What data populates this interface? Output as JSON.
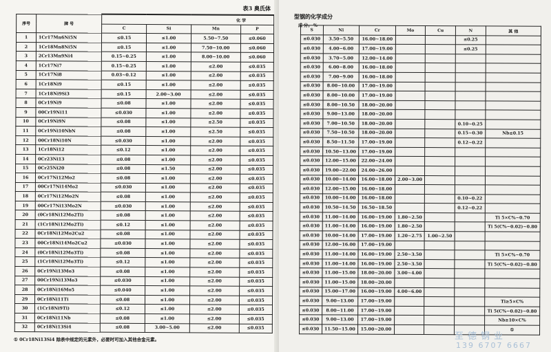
{
  "left": {
    "table_title": "表3  奥氏体",
    "header": {
      "no": "序号",
      "grade": "牌      号",
      "group": "化      学",
      "cols": [
        "C",
        "Si",
        "Mn",
        "P"
      ]
    },
    "rows": [
      [
        "1",
        "1Cr17Mn6Ni5N",
        "≤0.15",
        "≤1.00",
        "5.50~7.50",
        "≤0.060"
      ],
      [
        "2",
        "1Cr18Mn8Ni5N",
        "≤0.15",
        "≤1.00",
        "7.50~10.00",
        "≤0.060"
      ],
      [
        "3",
        "2Cr13Mn9Ni4",
        "0.15~0.25",
        "≤1.00",
        "8.00~10.00",
        "≤0.060"
      ],
      [
        "4",
        "1Cr17Ni7",
        "0.15~0.25",
        "≤1.00",
        "≤2.00",
        "≤0.035"
      ],
      [
        "5",
        "1Cr17Ni8",
        "0.03~0.12",
        "≤1.00",
        "≤2.00",
        "≤0.035"
      ],
      [
        "6",
        "1Cr18Ni9",
        "≤0.15",
        "≤1.00",
        "≤2.00",
        "≤0.035"
      ],
      [
        "7",
        "1Cr18Ni9Si3",
        "≤0.15",
        "2.00~3.00",
        "≤2.00",
        "≤0.035"
      ],
      [
        "8",
        "0Cr19Ni9",
        "≤0.08",
        "≤1.00",
        "≤2.00",
        "≤0.035"
      ],
      [
        "9",
        "00Cr19Ni11",
        "≤0.030",
        "≤1.00",
        "≤2.00",
        "≤0.035"
      ],
      [
        "10",
        "0Cr19Ni9N",
        "≤0.08",
        "≤1.00",
        "≤2.50",
        "≤0.035"
      ],
      [
        "11",
        "0Cr19Ni10NbN",
        "≤0.08",
        "≤1.00",
        "≤2.50",
        "≤0.035"
      ],
      [
        "12",
        "00Cr18Ni10N",
        "≤0.030",
        "≤1.00",
        "≤2.00",
        "≤0.035"
      ],
      [
        "13",
        "1Cr18Ni12",
        "≤0.12",
        "≤1.00",
        "≤2.00",
        "≤0.035"
      ],
      [
        "14",
        "0Cr23Ni13",
        "≤0.08",
        "≤1.00",
        "≤2.00",
        "≤0.035"
      ],
      [
        "15",
        "0Cr25Ni20",
        "≤0.08",
        "≤1.50",
        "≤2.00",
        "≤0.035"
      ],
      [
        "16",
        "0Cr17Ni12Mo2",
        "≤0.08",
        "≤1.00",
        "≤2.00",
        "≤0.035"
      ],
      [
        "17",
        "00Cr17Ni14Mo2",
        "≤0.030",
        "≤1.00",
        "≤2.00",
        "≤0.035"
      ],
      [
        "18",
        "0Cr17Ni12Mo2N",
        "≤0.08",
        "≤1.00",
        "≤2.00",
        "≤0.035"
      ],
      [
        "19",
        "00Cr17Ni13Mo2N",
        "≤0.030",
        "≤1.00",
        "≤2.00",
        "≤0.035"
      ],
      [
        "20",
        "(0Cr18Ni12Mo2Ti)",
        "≤0.08",
        "≤1.00",
        "≤2.00",
        "≤0.035"
      ],
      [
        "21",
        "(1Cr18Ni12Mo2Ti)",
        "≤0.12",
        "≤1.00",
        "≤2.00",
        "≤0.035"
      ],
      [
        "22",
        "0Cr18Ni12Mo2Cu2",
        "≤0.08",
        "≤1.00",
        "≤2.00",
        "≤0.035"
      ],
      [
        "23",
        "00Cr18Ni14Mo2Cu2",
        "≤0.030",
        "≤1.00",
        "≤2.00",
        "≤0.035"
      ],
      [
        "24",
        "(0Cr18Ni12Mo3Ti)",
        "≤0.08",
        "≤1.00",
        "≤2.00",
        "≤0.035"
      ],
      [
        "25",
        "(1Cr18Ni12Mo3Ti)",
        "≤0.12",
        "≤1.00",
        "≤2.00",
        "≤0.035"
      ],
      [
        "26",
        "0Cr19Ni13Mo3",
        "≤0.08",
        "≤1.00",
        "≤2.00",
        "≤0.035"
      ],
      [
        "27",
        "00Cr19Ni13Mo3",
        "≤0.030",
        "≤1.00",
        "≤2.00",
        "≤0.035"
      ],
      [
        "28",
        "0Cr18Ni16Mo5",
        "≤0.040",
        "≤1.00",
        "≤2.00",
        "≤0.035"
      ],
      [
        "29",
        "0Cr18Ni11Ti",
        "≤0.08",
        "≤1.00",
        "≤2.00",
        "≤0.035"
      ],
      [
        "30",
        "(1Cr18Ni9Ti)",
        "≤0.12",
        "≤1.00",
        "≤2.00",
        "≤0.035"
      ],
      [
        "31",
        "0Cr18Ni11Nb",
        "≤0.08",
        "≤1.00",
        "≤2.00",
        "≤0.035"
      ],
      [
        "32",
        "0Cr18Ni13Si4",
        "≤0.08",
        "3.00~5.00",
        "≤2.00",
        "≤0.035"
      ]
    ],
    "footnote": "① 0Cr18Ni13Si4 除表中规定的元素外，必要时可加入其他合金元素。"
  },
  "right": {
    "table_title": "型钢的化学成分",
    "subheader": "成    分，   %",
    "cols": [
      "S",
      "Ni",
      "Cr",
      "Mo",
      "Cu",
      "N",
      "其      他"
    ],
    "rows": [
      [
        "≤0.030",
        "3.50~5.50",
        "16.00~18.00",
        "",
        "",
        "≤0.25",
        ""
      ],
      [
        "≤0.030",
        "4.00~6.00",
        "17.00~19.00",
        "",
        "",
        "≤0.25",
        ""
      ],
      [
        "≤0.030",
        "3.70~5.00",
        "12.00~14.00",
        "",
        "",
        "",
        ""
      ],
      [
        "≤0.030",
        "6.00~8.00",
        "16.00~18.00",
        "",
        "",
        "",
        ""
      ],
      [
        "≤0.030",
        "7.00~9.00",
        "16.00~18.00",
        "",
        "",
        "",
        ""
      ],
      [
        "≤0.030",
        "8.00~10.00",
        "17.00~19.00",
        "",
        "",
        "",
        ""
      ],
      [
        "≤0.030",
        "8.00~10.00",
        "17.00~19.00",
        "",
        "",
        "",
        ""
      ],
      [
        "≤0.030",
        "8.00~10.50",
        "18.00~20.00",
        "",
        "",
        "",
        ""
      ],
      [
        "≤0.030",
        "9.00~13.00",
        "18.00~20.00",
        "",
        "",
        "",
        ""
      ],
      [
        "≤0.030",
        "7.00~10.50",
        "18.00~20.00",
        "",
        "",
        "0.10~0.25",
        ""
      ],
      [
        "≤0.030",
        "7.50~10.50",
        "18.00~20.00",
        "",
        "",
        "0.15~0.30",
        "Nb≤0.15"
      ],
      [
        "≤0.030",
        "8.50~11.50",
        "17.00~19.00",
        "",
        "",
        "0.12~0.22",
        ""
      ],
      [
        "≤0.030",
        "10.50~13.00",
        "17.00~19.00",
        "",
        "",
        "",
        ""
      ],
      [
        "≤0.030",
        "12.00~15.00",
        "22.00~24.00",
        "",
        "",
        "",
        ""
      ],
      [
        "≤0.030",
        "19.00~22.00",
        "24.00~26.00",
        "",
        "",
        "",
        ""
      ],
      [
        "≤0.030",
        "10.00~14.00",
        "16.00~18.00",
        "2.00~3.00",
        "",
        "",
        ""
      ],
      [
        "≤0.030",
        "12.00~15.00",
        "16.00~18.00",
        "",
        "",
        "",
        ""
      ],
      [
        "≤0.030",
        "10.00~14.00",
        "16.00~18.00",
        "",
        "",
        "0.10~0.22",
        ""
      ],
      [
        "≤0.030",
        "10.50~14.50",
        "16.50~18.50",
        "",
        "",
        "0.12~0.22",
        ""
      ],
      [
        "≤0.030",
        "11.00~14.00",
        "16.00~19.00",
        "1.80~2.50",
        "",
        "",
        "Ti 5×C%~0.70"
      ],
      [
        "≤0.030",
        "11.00~14.00",
        "16.00~19.00",
        "1.80~2.50",
        "",
        "",
        "Ti 5(C%−0.02)~0.80"
      ],
      [
        "≤0.030",
        "10.00~14.00",
        "17.00~19.00",
        "1.20~2.75",
        "1.00~2.50",
        "",
        ""
      ],
      [
        "≤0.030",
        "12.00~16.00",
        "17.00~19.00",
        "",
        "",
        "",
        ""
      ],
      [
        "≤0.030",
        "11.00~14.00",
        "16.00~19.00",
        "2.50~3.50",
        "",
        "",
        "Ti 5×C%~0.70"
      ],
      [
        "≤0.030",
        "11.00~14.00",
        "16.00~19.00",
        "2.50~3.50",
        "",
        "",
        "Ti 5(C%−0.02)~0.80"
      ],
      [
        "≤0.030",
        "11.00~15.00",
        "18.00~20.00",
        "3.00~4.00",
        "",
        "",
        ""
      ],
      [
        "≤0.030",
        "11.00~15.00",
        "18.00~20.00",
        "",
        "",
        "",
        ""
      ],
      [
        "≤0.030",
        "15.00~17.00",
        "16.00~19.00",
        "4.00~6.00",
        "",
        "",
        ""
      ],
      [
        "≤0.030",
        "9.00~13.00",
        "17.00~19.00",
        "",
        "",
        "",
        "Ti≥5×C%"
      ],
      [
        "≤0.030",
        "8.00~11.00",
        "17.00~19.00",
        "",
        "",
        "",
        "Ti 5(C%−0.02)~0.80"
      ],
      [
        "≤0.030",
        "9.00~13.00",
        "17.00~19.00",
        "",
        "",
        "",
        "Nb≥10×C%"
      ],
      [
        "≤0.030",
        "11.50~15.00",
        "15.00~20.00",
        "",
        "",
        "",
        "①"
      ]
    ]
  },
  "watermark": {
    "company": "至德钢业",
    "phone": "139 6707 6667"
  }
}
